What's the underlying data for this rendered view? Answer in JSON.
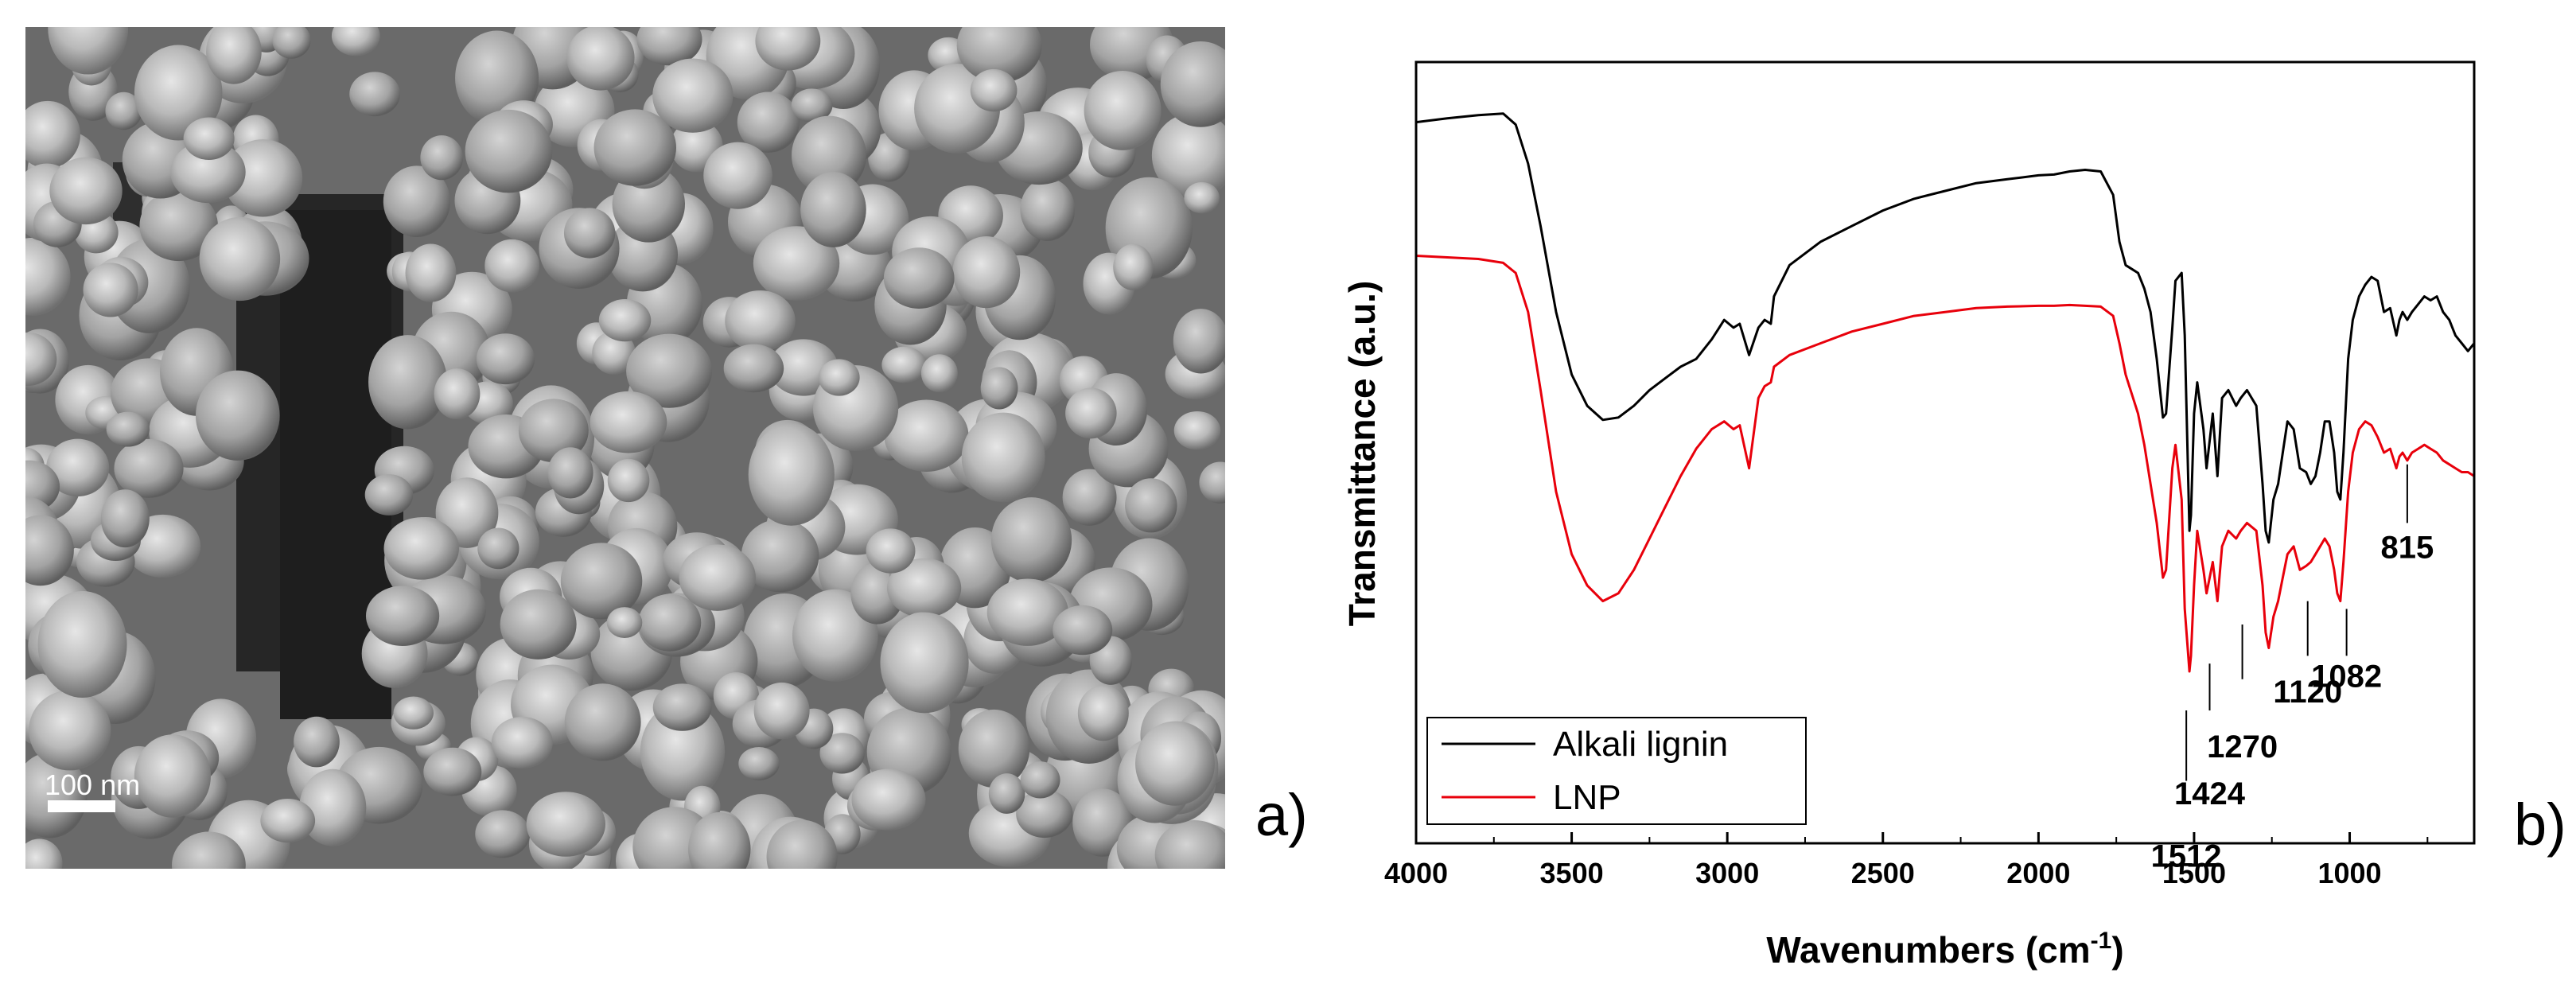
{
  "panels": {
    "left_label": "a)",
    "right_label": "b)",
    "micrograph": {
      "scale_bar_label": "100 nm"
    }
  },
  "chart_data": {
    "type": "line",
    "title": "",
    "xlabel": "Wavenumbers",
    "xlabel_unit": "(cm",
    "xlabel_unit_sup": "-1",
    "xlabel_unit_close": ")",
    "ylabel": "Transmittance (a.u.)",
    "xlim": [
      4000,
      600
    ],
    "ylim": [
      0,
      100
    ],
    "x_ticks": [
      4000,
      3500,
      3000,
      2500,
      2000,
      1500,
      1000
    ],
    "x_tick_labels": [
      "4000",
      "3500",
      "3000",
      "2500",
      "2000",
      "1500",
      "1000"
    ],
    "y_ticks_shown": false,
    "legend": {
      "placement": "bottom-left",
      "entries": [
        {
          "name": "Alkali lignin",
          "color": "#000000"
        },
        {
          "name": "LNP",
          "color": "#e8000b"
        }
      ]
    },
    "series": [
      {
        "name": "Alkali lignin",
        "color": "#000000",
        "x": [
          4000,
          3900,
          3800,
          3720,
          3680,
          3640,
          3600,
          3550,
          3500,
          3450,
          3400,
          3350,
          3300,
          3250,
          3200,
          3150,
          3100,
          3050,
          3010,
          2980,
          2960,
          2930,
          2900,
          2880,
          2860,
          2850,
          2800,
          2700,
          2600,
          2500,
          2400,
          2300,
          2200,
          2100,
          2000,
          1950,
          1900,
          1850,
          1800,
          1760,
          1740,
          1720,
          1700,
          1680,
          1660,
          1640,
          1620,
          1600,
          1590,
          1570,
          1560,
          1540,
          1530,
          1515,
          1510,
          1500,
          1490,
          1470,
          1460,
          1440,
          1425,
          1410,
          1390,
          1365,
          1350,
          1330,
          1300,
          1280,
          1270,
          1260,
          1245,
          1230,
          1215,
          1200,
          1180,
          1160,
          1140,
          1125,
          1110,
          1095,
          1080,
          1065,
          1050,
          1040,
          1030,
          1020,
          1005,
          990,
          970,
          950,
          930,
          910,
          890,
          870,
          850,
          840,
          830,
          815,
          800,
          780,
          760,
          740,
          720,
          700,
          680,
          660,
          640,
          620,
          600
        ],
        "y": [
          92.3,
          92.8,
          93.2,
          93.4,
          92.0,
          87.0,
          79.0,
          68.0,
          60.0,
          56.0,
          54.2,
          54.5,
          56.0,
          58.0,
          59.5,
          61.0,
          62.0,
          64.5,
          67.0,
          66.0,
          66.5,
          62.5,
          66.0,
          67.0,
          66.5,
          70.0,
          74.0,
          77.0,
          79.0,
          81.0,
          82.5,
          83.5,
          84.5,
          85.0,
          85.5,
          85.6,
          86.0,
          86.2,
          86.0,
          83.0,
          77.0,
          74.0,
          73.5,
          73.0,
          71.0,
          68.0,
          62.0,
          54.5,
          55.0,
          66.0,
          72.0,
          73.0,
          65.0,
          40.0,
          42.0,
          55.0,
          59.0,
          53.0,
          48.0,
          55.0,
          47.0,
          57.0,
          58.0,
          56.0,
          57.0,
          58.0,
          56.0,
          46.0,
          40.0,
          38.5,
          44.0,
          46.0,
          50.0,
          54.0,
          53.0,
          48.0,
          47.5,
          46.0,
          47.0,
          50.0,
          54.0,
          54.0,
          50.0,
          45.0,
          44.0,
          50.0,
          62.0,
          67.0,
          70.0,
          71.5,
          72.5,
          72.0,
          68.0,
          68.5,
          65.0,
          67.0,
          68.0,
          67.0,
          68.0,
          69.0,
          70.0,
          69.5,
          70.0,
          68.0,
          67.0,
          65.0,
          64.0,
          63.0,
          64.0
        ]
      },
      {
        "name": "LNP",
        "color": "#e8000b",
        "x": [
          4000,
          3900,
          3800,
          3720,
          3680,
          3640,
          3600,
          3550,
          3500,
          3450,
          3400,
          3350,
          3300,
          3250,
          3200,
          3150,
          3100,
          3050,
          3010,
          2980,
          2960,
          2930,
          2900,
          2880,
          2860,
          2850,
          2800,
          2700,
          2600,
          2500,
          2400,
          2300,
          2200,
          2100,
          2000,
          1950,
          1900,
          1850,
          1800,
          1760,
          1740,
          1720,
          1700,
          1680,
          1660,
          1640,
          1620,
          1600,
          1590,
          1570,
          1560,
          1540,
          1530,
          1515,
          1510,
          1500,
          1490,
          1470,
          1460,
          1440,
          1425,
          1410,
          1390,
          1365,
          1350,
          1330,
          1300,
          1280,
          1270,
          1260,
          1245,
          1230,
          1215,
          1200,
          1180,
          1160,
          1140,
          1125,
          1110,
          1095,
          1080,
          1065,
          1050,
          1040,
          1030,
          1020,
          1005,
          990,
          970,
          950,
          930,
          910,
          890,
          870,
          850,
          840,
          830,
          815,
          800,
          780,
          760,
          740,
          720,
          700,
          680,
          660,
          640,
          620,
          600
        ],
        "y": [
          75.2,
          75.0,
          74.8,
          74.3,
          73.0,
          68.0,
          58.0,
          45.0,
          37.0,
          33.0,
          31.0,
          32.0,
          35.0,
          39.0,
          43.0,
          47.0,
          50.5,
          53.0,
          54.0,
          53.0,
          53.5,
          48.0,
          57.0,
          58.5,
          59.0,
          61.0,
          62.5,
          64.0,
          65.5,
          66.5,
          67.5,
          68.0,
          68.5,
          68.7,
          68.8,
          68.8,
          68.9,
          68.8,
          68.7,
          67.5,
          64.0,
          60.0,
          57.5,
          55.0,
          51.0,
          46.0,
          41.0,
          34.0,
          35.0,
          48.0,
          51.0,
          44.0,
          30.0,
          22.0,
          24.0,
          33.0,
          40.0,
          35.0,
          32.0,
          36.0,
          31.0,
          38.0,
          40.0,
          39.0,
          40.0,
          41.0,
          40.0,
          33.0,
          27.0,
          25.0,
          29.0,
          31.0,
          34.0,
          37.0,
          38.0,
          35.0,
          35.5,
          36.0,
          37.0,
          38.0,
          39.0,
          38.0,
          35.0,
          32.0,
          31.0,
          36.0,
          45.0,
          50.0,
          53.0,
          54.0,
          53.5,
          52.0,
          50.0,
          50.5,
          48.0,
          49.5,
          50.0,
          49.0,
          50.0,
          50.5,
          51.0,
          50.5,
          50.0,
          49.0,
          48.5,
          48.0,
          47.5,
          47.5,
          47.0
        ]
      }
    ],
    "annotations": [
      {
        "label": "815",
        "wavenumber": 815,
        "tick_top": 48.5,
        "tick_bottom": 41.0,
        "label_y": 36.5
      },
      {
        "label": "1082",
        "wavenumber": 1010,
        "tick_top": 30.0,
        "tick_bottom": 24.0,
        "label_y": 20.0
      },
      {
        "label": "1120",
        "wavenumber": 1135,
        "tick_top": 31.0,
        "tick_bottom": 24.0,
        "label_y": 18.0
      },
      {
        "label": "1270",
        "wavenumber": 1345,
        "tick_top": 28.0,
        "tick_bottom": 21.0,
        "label_y": 11.0
      },
      {
        "label": "1424",
        "wavenumber": 1450,
        "tick_top": 23.0,
        "tick_bottom": 17.0,
        "label_y": 5.0
      },
      {
        "label": "1512",
        "wavenumber": 1525,
        "tick_top": 17.0,
        "tick_bottom": 8.0,
        "label_y": -3.0
      }
    ]
  }
}
